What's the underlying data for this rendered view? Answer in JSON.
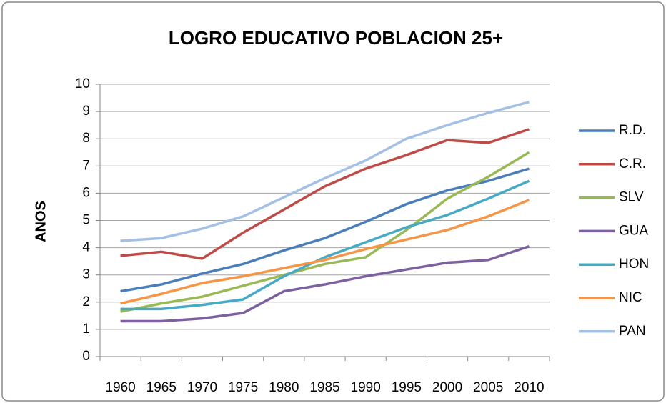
{
  "chart_data": {
    "type": "line",
    "title": "LOGRO EDUCATIVO POBLACION 25+",
    "y_label": "ANOS",
    "categories": [
      "1960",
      "1965",
      "1970",
      "1975",
      "1980",
      "1985",
      "1990",
      "1995",
      "2000",
      "2005",
      "2010"
    ],
    "ylim": [
      0,
      10
    ],
    "yticks": [
      0,
      1,
      2,
      3,
      4,
      5,
      6,
      7,
      8,
      9,
      10
    ],
    "grid": true,
    "legend": "right",
    "series": [
      {
        "name": "R.D.",
        "color": "#4a7ebb",
        "values": [
          2.4,
          2.65,
          3.05,
          3.4,
          3.9,
          4.35,
          4.95,
          5.6,
          6.1,
          6.45,
          6.9
        ]
      },
      {
        "name": "C.R.",
        "color": "#be4b48",
        "values": [
          3.7,
          3.85,
          3.6,
          4.55,
          5.4,
          6.25,
          6.9,
          7.4,
          7.95,
          7.85,
          8.35
        ]
      },
      {
        "name": "SLV",
        "color": "#98b954",
        "values": [
          1.65,
          1.95,
          2.2,
          2.6,
          3.0,
          3.4,
          3.65,
          4.65,
          5.8,
          6.6,
          7.5
        ]
      },
      {
        "name": "GUA",
        "color": "#7d60a0",
        "values": [
          1.3,
          1.3,
          1.4,
          1.6,
          2.4,
          2.65,
          2.95,
          3.2,
          3.45,
          3.55,
          4.05
        ]
      },
      {
        "name": "HON",
        "color": "#46aac5",
        "values": [
          1.75,
          1.75,
          1.9,
          2.1,
          2.95,
          3.65,
          4.2,
          4.75,
          5.2,
          5.8,
          6.45
        ]
      },
      {
        "name": "NIC",
        "color": "#f69546",
        "values": [
          1.95,
          2.3,
          2.7,
          2.95,
          3.25,
          3.55,
          3.95,
          4.3,
          4.65,
          5.15,
          5.75
        ]
      },
      {
        "name": "PAN",
        "color": "#a5c0e5",
        "values": [
          4.25,
          4.35,
          4.7,
          5.15,
          5.85,
          6.55,
          7.2,
          8.0,
          8.5,
          8.95,
          9.35
        ]
      }
    ]
  }
}
